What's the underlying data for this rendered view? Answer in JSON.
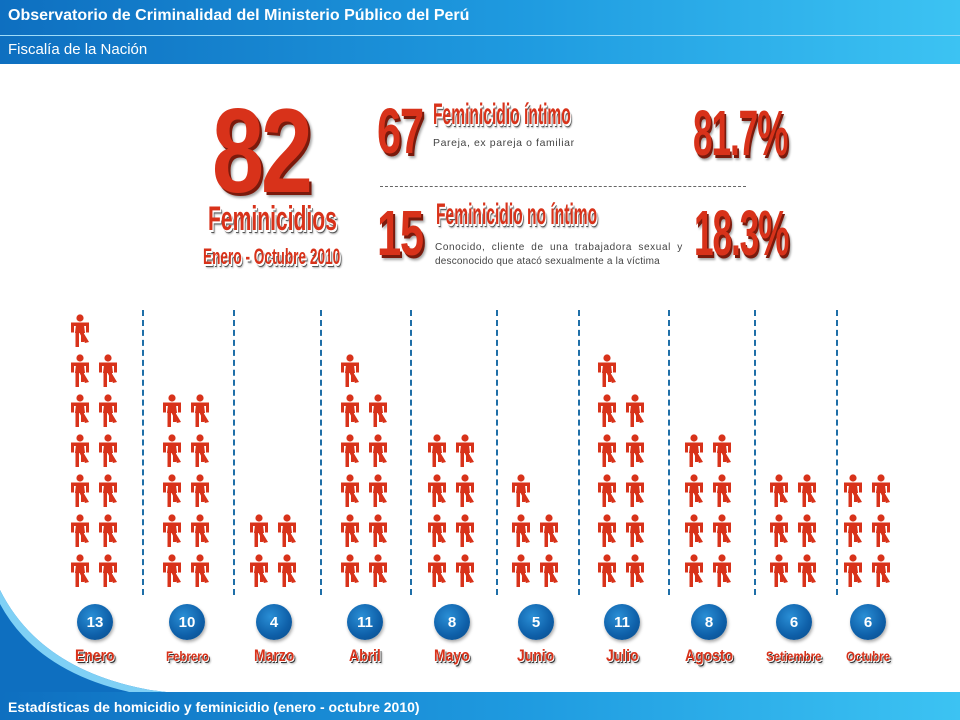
{
  "header": {
    "title": "Observatorio de Criminalidad del Ministerio Público del Perú",
    "subtitle": "Fiscalía de la Nación"
  },
  "footer": {
    "text": "Estadísticas de homicidio y feminicidio (enero - octubre 2010)"
  },
  "summary": {
    "total": "82",
    "total_label": "Feminicidios",
    "period": "Enero - Octubre 2010",
    "intimo": {
      "count": "67",
      "title": "Feminicidio íntimo",
      "description": "Pareja, ex pareja o familiar",
      "percent": "81.7%"
    },
    "no_intimo": {
      "count": "15",
      "title": "Feminicidio no íntimo",
      "description_line1": "Conocido, cliente de una trabajadora sexual y",
      "description_line2": "desconocido que atacó sexualmente a la víctima",
      "percent": "18.3%"
    }
  },
  "colors": {
    "accent_red": "#d8321a",
    "figure_red": "#d8321a",
    "badge_blue": "#0e5fa8",
    "header_blue": "#1f9be0"
  },
  "months": [
    {
      "name": "Enero",
      "count": 13
    },
    {
      "name": "Febrero",
      "count": 10
    },
    {
      "name": "Marzo",
      "count": 4
    },
    {
      "name": "Abril",
      "count": 11
    },
    {
      "name": "Mayo",
      "count": 8
    },
    {
      "name": "Junio",
      "count": 5
    },
    {
      "name": "Julio",
      "count": 11
    },
    {
      "name": "Agosto",
      "count": 8
    },
    {
      "name": "Setiembre",
      "count": 6
    },
    {
      "name": "Octubre",
      "count": 6
    }
  ],
  "icons": {
    "figure": "woman-figure-icon"
  }
}
